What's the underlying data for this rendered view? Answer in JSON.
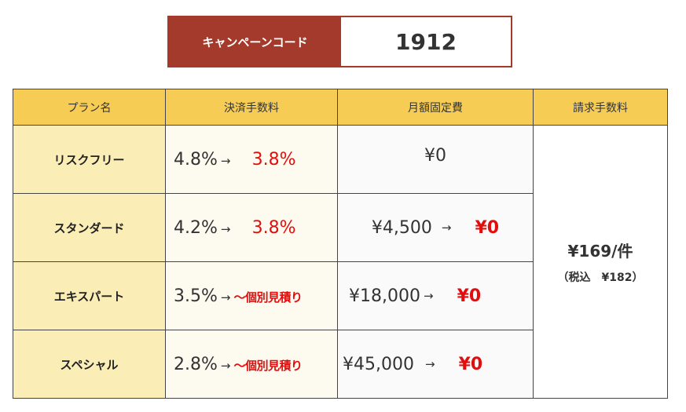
{
  "campaign": {
    "label": "キャンペーンコード",
    "code": "1912"
  },
  "table": {
    "headers": [
      "プラン名",
      "決済手数料",
      "月額固定費",
      "請求手数料"
    ],
    "rows": [
      {
        "plan": "リスクフリー",
        "fee_old": "4.8%",
        "fee_new": "3.8%",
        "fixed_old": "¥0",
        "fixed_new": ""
      },
      {
        "plan": "スタンダード",
        "fee_old": "4.2%",
        "fee_new": "3.8%",
        "fixed_old": "¥4,500",
        "fixed_new": "¥0"
      },
      {
        "plan": "エキスパート",
        "fee_old": "3.5%",
        "fee_new": "～個別見積り",
        "fixed_old": "¥18,000",
        "fixed_new": "¥0"
      },
      {
        "plan": "スペシャル",
        "fee_old": "2.8%",
        "fee_new": "～個別見積り",
        "fixed_old": "¥45,000",
        "fixed_new": "¥0"
      }
    ],
    "arrow": "→",
    "billing": {
      "main": "¥169/件",
      "sub": "（税込　¥182）"
    }
  },
  "colors": {
    "brand": "#a33a2b",
    "header_bg": "#f7cc55",
    "plan_bg": "#fbedb6",
    "highlight": "#e10e0e"
  }
}
